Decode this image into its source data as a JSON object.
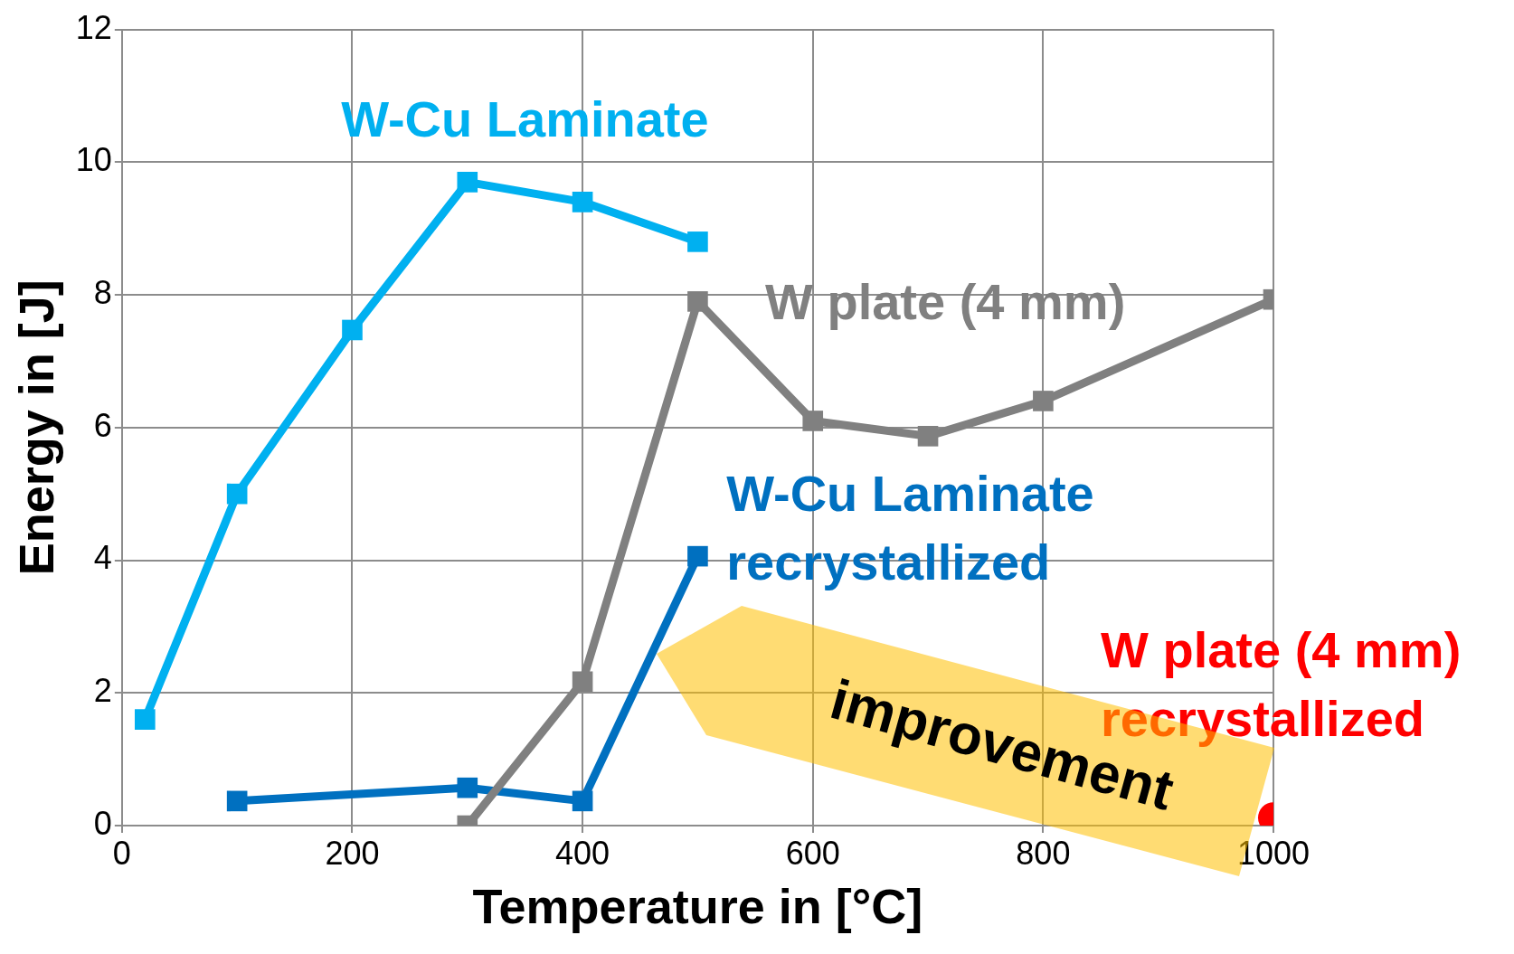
{
  "chart_data": {
    "type": "line",
    "xlabel": "Temperature in [°C]",
    "ylabel": "Energy in [J]",
    "xlim": [
      0,
      1000
    ],
    "xticks": [
      0,
      200,
      400,
      600,
      800,
      1000
    ],
    "ylim": [
      0,
      12
    ],
    "yticks": [
      0,
      2,
      4,
      6,
      8,
      10,
      12
    ],
    "grid": true,
    "legend": false,
    "marker": "square",
    "line_style": "solid",
    "series": [
      {
        "name": "W-Cu Laminate",
        "color": "#00b0f0",
        "x": [
          20,
          100,
          200,
          300,
          400,
          500
        ],
        "values": [
          1.6,
          5.0,
          7.47,
          9.7,
          9.4,
          8.8
        ]
      },
      {
        "name": "W plate (4 mm)",
        "color": "#808080",
        "x": [
          300,
          400,
          500,
          600,
          700,
          800,
          1000
        ],
        "values": [
          0,
          2.17,
          7.9,
          6.1,
          5.87,
          6.4,
          7.93
        ]
      },
      {
        "name": "W-Cu Laminate recrystallized",
        "color": "#0070c0",
        "x": [
          100,
          300,
          400,
          500
        ],
        "values": [
          0.37,
          0.57,
          0.37,
          4.06
        ]
      },
      {
        "name": "W plate (4 mm) recrystallized",
        "color": "#ff0000",
        "x": [
          1000
        ],
        "values": [
          0.12
        ],
        "marker": "circle"
      }
    ],
    "annotations": [
      "improvement"
    ]
  }
}
